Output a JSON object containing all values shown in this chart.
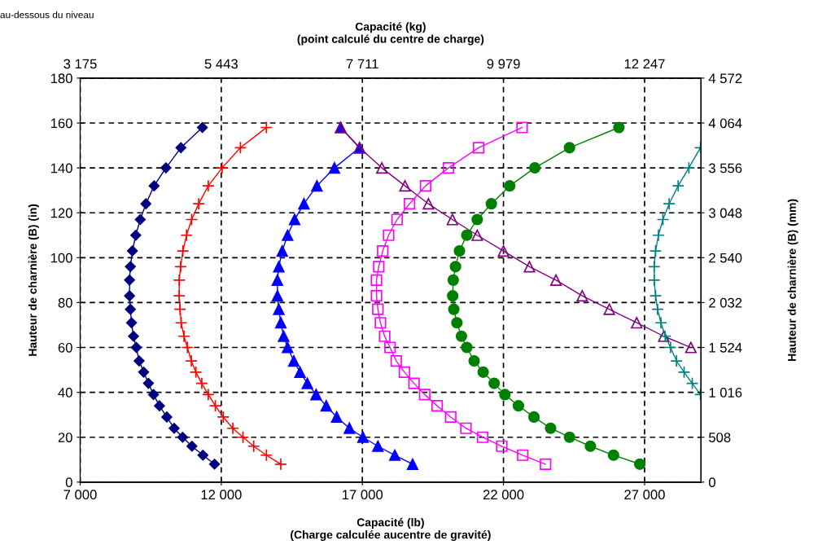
{
  "chart_data": {
    "type": "line",
    "xlabel": "Capacité (lb)\n(Charge calculée aucentre de gravité)",
    "x2label": "Capacité (kg)\n(point calculé du centre de charge)",
    "ylabel": "Hauteur de charnière (B) (in)",
    "y2label": "Hauteur de charnière (B) (mm)",
    "annotations": [
      "au-dessous du niveau"
    ],
    "xlim": [
      7000,
      29000
    ],
    "xticks": [
      {
        "value": 7000,
        "label": "7 000"
      },
      {
        "value": 12000,
        "label": "12 000"
      },
      {
        "value": 17000,
        "label": "17 000"
      },
      {
        "value": 22000,
        "label": "22 000"
      },
      {
        "value": 27000,
        "label": "27 000"
      }
    ],
    "x2lim": [
      3175,
      13154
    ],
    "x2ticks": [
      {
        "value": 3175,
        "label": "3 175"
      },
      {
        "value": 5443,
        "label": "5 443"
      },
      {
        "value": 7711,
        "label": "7 711"
      },
      {
        "value": 9979,
        "label": "9 979"
      },
      {
        "value": 12247,
        "label": "12 247"
      }
    ],
    "ylim": [
      0,
      180
    ],
    "yticks": [
      0,
      20,
      40,
      60,
      80,
      100,
      120,
      140,
      160,
      180
    ],
    "y2lim": [
      0,
      4572
    ],
    "y2ticks": [
      0,
      508,
      {
        "value": 1016,
        "label": "1 016"
      },
      {
        "value": 1524,
        "label": "1 524"
      },
      {
        "value": 2032,
        "label": "2 032"
      },
      {
        "value": 2540,
        "label": "2 540"
      },
      {
        "value": 3048,
        "label": "3 048"
      },
      {
        "value": 3556,
        "label": "3 556"
      },
      {
        "value": 4064,
        "label": "4 064"
      },
      {
        "value": 4572,
        "label": "4 572"
      }
    ],
    "grid": true,
    "line_style": "solid",
    "series": [
      {
        "color": "#000080",
        "marker": "diamond",
        "x": [
          11760,
          11350,
          10960,
          10630,
          10330,
          10070,
          9810,
          9600,
          9420,
          9250,
          9090,
          8990,
          8890,
          8820,
          8780,
          8750,
          8750,
          8780,
          8850,
          8970,
          9130,
          9330,
          9620,
          10040,
          10570,
          11330
        ],
        "values": [
          8,
          12,
          16,
          20,
          24,
          29,
          34,
          39,
          44,
          49,
          54,
          60,
          65,
          71,
          77,
          83,
          90,
          96,
          103,
          110,
          117,
          124,
          132,
          140,
          149,
          158
        ]
      },
      {
        "color": "#ff0000",
        "marker": "cross",
        "x": [
          14110,
          13600,
          13150,
          12770,
          12410,
          12070,
          11790,
          11540,
          11310,
          11100,
          10940,
          10800,
          10680,
          10580,
          10540,
          10510,
          10510,
          10560,
          10640,
          10770,
          10950,
          11200,
          11540,
          12030,
          12680,
          13600
        ],
        "values": [
          8,
          12,
          16,
          20,
          24,
          29,
          34,
          39,
          44,
          49,
          54,
          60,
          65,
          71,
          77,
          83,
          90,
          96,
          103,
          110,
          117,
          124,
          132,
          140,
          149,
          158
        ]
      },
      {
        "color": "#0000ff",
        "marker": "triangle",
        "x": [
          18780,
          18150,
          17550,
          17020,
          16540,
          16090,
          15720,
          15360,
          15050,
          14790,
          14570,
          14350,
          14210,
          14110,
          14040,
          13990,
          13990,
          14040,
          14160,
          14350,
          14600,
          14930,
          15390,
          16010,
          16900,
          16230
        ],
        "values": [
          8,
          12,
          16,
          20,
          24,
          29,
          34,
          39,
          44,
          49,
          54,
          60,
          65,
          71,
          77,
          83,
          90,
          96,
          103,
          110,
          117,
          124,
          132,
          140,
          149,
          158
        ]
      },
      {
        "color": "#800080",
        "marker": "triangle",
        "x": [
          16230,
          16900,
          17690,
          18510,
          19340,
          20190,
          21070,
          22000,
          22920,
          23860,
          24790,
          25750,
          26720,
          27680,
          28640
        ],
        "values": [
          158,
          149,
          140,
          132,
          124,
          117,
          110,
          103,
          96,
          90,
          83,
          77,
          71,
          65,
          60
        ]
      },
      {
        "color": "#ff00ff",
        "marker": "square",
        "x": [
          23490,
          22680,
          21940,
          21260,
          20670,
          20130,
          19650,
          19210,
          18830,
          18490,
          18200,
          17980,
          17790,
          17640,
          17550,
          17500,
          17500,
          17580,
          17720,
          17930,
          18230,
          18670,
          19240,
          20050,
          21120,
          22660
        ],
        "values": [
          8,
          12,
          16,
          20,
          24,
          29,
          34,
          39,
          44,
          49,
          54,
          60,
          65,
          71,
          77,
          83,
          90,
          96,
          103,
          110,
          117,
          124,
          132,
          140,
          149,
          158
        ]
      },
      {
        "color": "#008000",
        "marker": "circle",
        "x": [
          26830,
          25900,
          25080,
          24340,
          23670,
          23080,
          22530,
          22050,
          21670,
          21280,
          20960,
          20700,
          20510,
          20350,
          20240,
          20200,
          20220,
          20300,
          20440,
          20700,
          21070,
          21570,
          22220,
          23110,
          24340,
          26090
        ],
        "values": [
          8,
          12,
          16,
          20,
          24,
          29,
          34,
          39,
          44,
          49,
          54,
          60,
          65,
          71,
          77,
          83,
          90,
          96,
          103,
          110,
          117,
          124,
          132,
          140,
          149,
          158
        ]
      },
      {
        "color": "#008080",
        "marker": "cross",
        "x": [
          28980,
          28690,
          28400,
          28130,
          27920,
          27730,
          27580,
          27460,
          27390,
          27340,
          27340,
          27390,
          27490,
          27650,
          27870,
          28190,
          28570,
          28980
        ],
        "values": [
          39,
          44,
          49,
          54,
          60,
          65,
          71,
          77,
          83,
          90,
          96,
          103,
          110,
          117,
          124,
          132,
          140,
          149
        ]
      }
    ]
  }
}
